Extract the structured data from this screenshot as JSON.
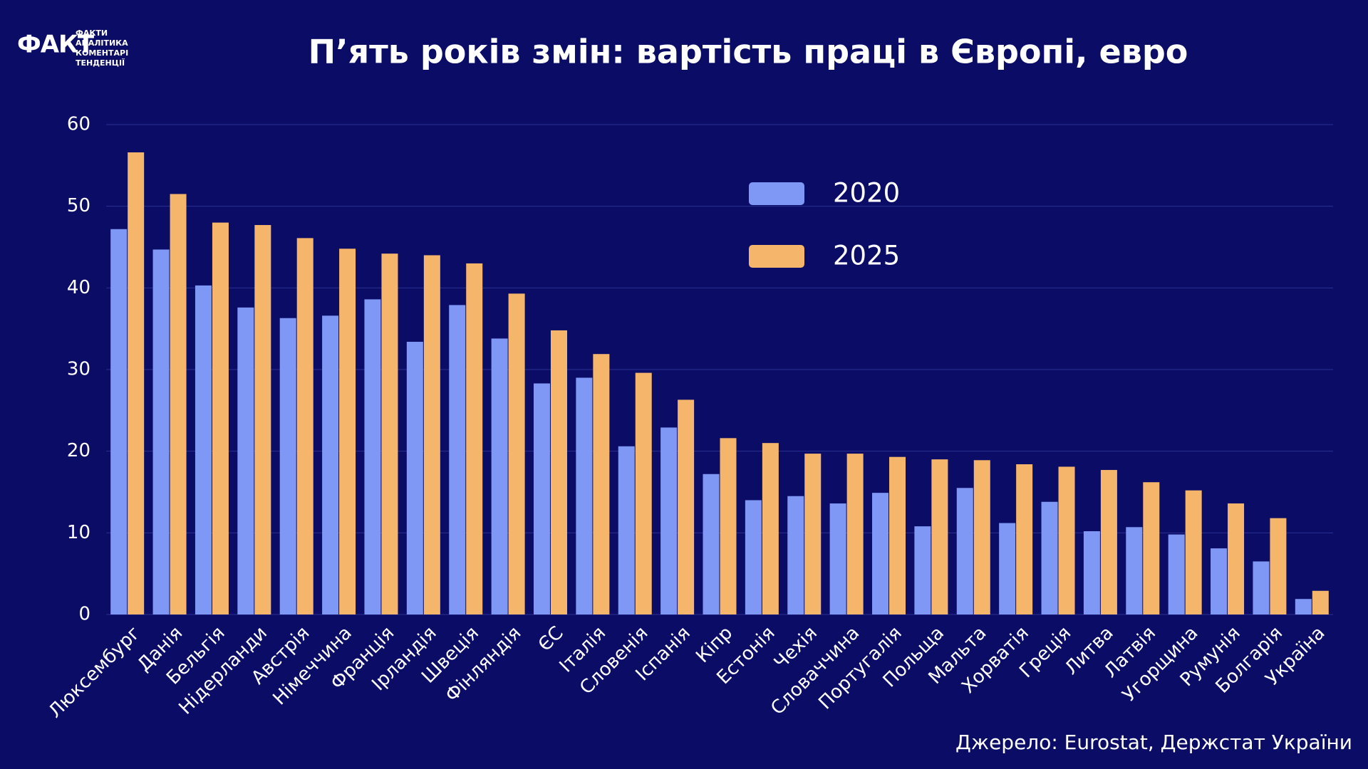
{
  "logo": {
    "mark": "ФАКТ",
    "lines": [
      "ФАКТИ",
      "АНАЛІТИКА",
      "КОМЕНТАРІ",
      "ТЕНДЕНЦІЇ"
    ]
  },
  "chart_data": {
    "type": "bar",
    "title": "П’ять років змін: вартість праці в Європі, евро",
    "source": "Джерело: Eurostat, Держстат України",
    "categories": [
      "Люксембург",
      "Данія",
      "Бельгія",
      "Нідерланди",
      "Австрія",
      "Німеччина",
      "Франція",
      "Ірландія",
      "Швеція",
      "Фінляндія",
      "ЄС",
      "Італія",
      "Словенія",
      "Іспанія",
      "Кіпр",
      "Естонія",
      "Чехія",
      "Словаччина",
      "Португалія",
      "Польща",
      "Мальта",
      "Хорватія",
      "Греція",
      "Литва",
      "Латвія",
      "Угорщина",
      "Румунія",
      "Болгарія",
      "Україна"
    ],
    "series": [
      {
        "name": "2020",
        "color": "#7f97f5",
        "values": [
          47.2,
          44.7,
          40.3,
          37.6,
          36.3,
          36.6,
          38.6,
          33.4,
          37.9,
          33.8,
          28.3,
          29.0,
          20.6,
          22.9,
          17.2,
          14.0,
          14.5,
          13.6,
          14.9,
          10.8,
          15.5,
          11.2,
          13.8,
          10.2,
          10.7,
          9.8,
          8.1,
          6.5,
          1.9
        ]
      },
      {
        "name": "2025",
        "color": "#f5b56b",
        "values": [
          56.6,
          51.5,
          48.0,
          47.7,
          46.1,
          44.8,
          44.2,
          44.0,
          43.0,
          39.3,
          34.8,
          31.9,
          29.6,
          26.3,
          21.6,
          21.0,
          19.7,
          19.7,
          19.3,
          19.0,
          18.9,
          18.4,
          18.1,
          17.7,
          16.2,
          15.2,
          13.6,
          11.8,
          2.9
        ]
      }
    ],
    "ylim": [
      0,
      60
    ],
    "yticks": [
      0,
      10,
      20,
      30,
      40,
      50,
      60
    ],
    "grid": true,
    "legend": "top-right"
  }
}
